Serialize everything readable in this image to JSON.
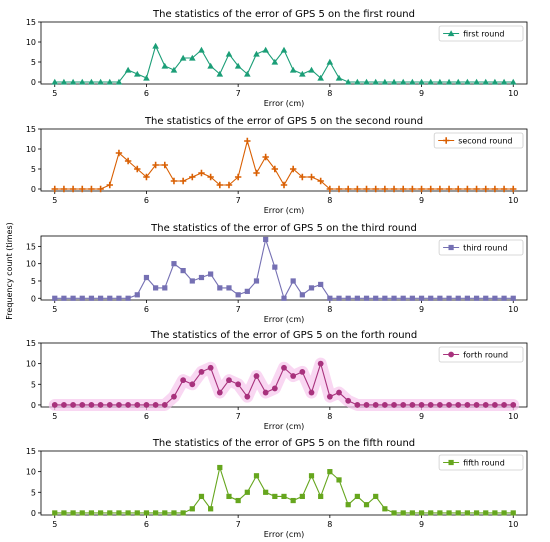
{
  "figure": {
    "ylabel": "Frequency count (times)"
  },
  "chart_data": [
    {
      "type": "line",
      "title": "The statistics of the error of GPS 5 on the first round",
      "xlabel": "Error (cm)",
      "ylabel": "",
      "xlim": [
        4.85,
        10.15
      ],
      "ylim": [
        -0.5,
        15
      ],
      "xticks": [
        5,
        6,
        7,
        8,
        9,
        10
      ],
      "yticks": [
        0,
        5,
        10,
        15
      ],
      "legend": "upper-right",
      "series": [
        {
          "name": "first round",
          "color": "#1b9e77",
          "marker": "triangle",
          "x": [
            5.0,
            5.1,
            5.2,
            5.3,
            5.4,
            5.5,
            5.6,
            5.7,
            5.8,
            5.9,
            6.0,
            6.1,
            6.2,
            6.3,
            6.4,
            6.5,
            6.6,
            6.7,
            6.8,
            6.9,
            7.0,
            7.1,
            7.2,
            7.3,
            7.4,
            7.5,
            7.6,
            7.7,
            7.8,
            7.9,
            8.0,
            8.1,
            8.2,
            8.3,
            8.4,
            8.5,
            8.6,
            8.7,
            8.8,
            8.9,
            9.0,
            9.1,
            9.2,
            9.3,
            9.4,
            9.5,
            9.6,
            9.7,
            9.8,
            9.9,
            10.0
          ],
          "values": [
            0,
            0,
            0,
            0,
            0,
            0,
            0,
            0,
            3,
            2,
            1,
            9,
            4,
            3,
            6,
            6,
            8,
            4,
            2,
            7,
            4,
            2,
            7,
            8,
            5,
            8,
            3,
            2,
            3,
            1,
            5,
            1,
            0,
            0,
            0,
            0,
            0,
            0,
            0,
            0,
            0,
            0,
            0,
            0,
            0,
            0,
            0,
            0,
            0,
            0,
            0
          ]
        }
      ]
    },
    {
      "type": "line",
      "title": "The statistics of the error of GPS 5 on the second round",
      "xlabel": "Error (cm)",
      "ylabel": "",
      "xlim": [
        4.85,
        10.15
      ],
      "ylim": [
        -0.5,
        15
      ],
      "xticks": [
        5,
        6,
        7,
        8,
        9,
        10
      ],
      "yticks": [
        0,
        5,
        10,
        15
      ],
      "legend": "upper-right",
      "series": [
        {
          "name": "second round",
          "color": "#d95f02",
          "marker": "plus",
          "x": [
            5.0,
            5.1,
            5.2,
            5.3,
            5.4,
            5.5,
            5.6,
            5.7,
            5.8,
            5.9,
            6.0,
            6.1,
            6.2,
            6.3,
            6.4,
            6.5,
            6.6,
            6.7,
            6.8,
            6.9,
            7.0,
            7.1,
            7.2,
            7.3,
            7.4,
            7.5,
            7.6,
            7.7,
            7.8,
            7.9,
            8.0,
            8.1,
            8.2,
            8.3,
            8.4,
            8.5,
            8.6,
            8.7,
            8.8,
            8.9,
            9.0,
            9.1,
            9.2,
            9.3,
            9.4,
            9.5,
            9.6,
            9.7,
            9.8,
            9.9,
            10.0
          ],
          "values": [
            0,
            0,
            0,
            0,
            0,
            0,
            1,
            9,
            7,
            5,
            3,
            6,
            6,
            2,
            2,
            3,
            4,
            3,
            1,
            1,
            3,
            12,
            4,
            8,
            5,
            1,
            5,
            3,
            3,
            2,
            0,
            0,
            0,
            0,
            0,
            0,
            0,
            0,
            0,
            0,
            0,
            0,
            0,
            0,
            0,
            0,
            0,
            0,
            0,
            0,
            0
          ]
        }
      ]
    },
    {
      "type": "line",
      "title": "The statistics of the error of GPS 5 on the third round",
      "xlabel": "Error (cm)",
      "ylabel": "",
      "xlim": [
        4.85,
        10.15
      ],
      "ylim": [
        -0.5,
        18
      ],
      "xticks": [
        5,
        6,
        7,
        8,
        9,
        10
      ],
      "yticks": [
        0,
        5,
        10,
        15
      ],
      "legend": "upper-right",
      "series": [
        {
          "name": "third round",
          "color": "#7570b3",
          "marker": "square",
          "x": [
            5.0,
            5.1,
            5.2,
            5.3,
            5.4,
            5.5,
            5.6,
            5.7,
            5.8,
            5.9,
            6.0,
            6.1,
            6.2,
            6.3,
            6.4,
            6.5,
            6.6,
            6.7,
            6.8,
            6.9,
            7.0,
            7.1,
            7.2,
            7.3,
            7.4,
            7.5,
            7.6,
            7.7,
            7.8,
            7.9,
            8.0,
            8.1,
            8.2,
            8.3,
            8.4,
            8.5,
            8.6,
            8.7,
            8.8,
            8.9,
            9.0,
            9.1,
            9.2,
            9.3,
            9.4,
            9.5,
            9.6,
            9.7,
            9.8,
            9.9,
            10.0
          ],
          "values": [
            0,
            0,
            0,
            0,
            0,
            0,
            0,
            0,
            0,
            1,
            6,
            3,
            3,
            10,
            8,
            5,
            6,
            7,
            3,
            3,
            1,
            2,
            5,
            17,
            9,
            0,
            5,
            1,
            3,
            4,
            0,
            0,
            0,
            0,
            0,
            0,
            0,
            0,
            0,
            0,
            0,
            0,
            0,
            0,
            0,
            0,
            0,
            0,
            0,
            0,
            0
          ]
        }
      ]
    },
    {
      "type": "line",
      "title": "The statistics of the error of GPS 5 on the forth round",
      "xlabel": "Error (cm)",
      "ylabel": "",
      "xlim": [
        4.85,
        10.15
      ],
      "ylim": [
        -0.5,
        15
      ],
      "xticks": [
        5,
        6,
        7,
        8,
        9,
        10
      ],
      "yticks": [
        0,
        5,
        10,
        15
      ],
      "legend": "upper-right",
      "series": [
        {
          "name": "forth round",
          "color": "#a8327d",
          "glow": "#f7c6ec",
          "marker": "circle",
          "x": [
            5.0,
            5.1,
            5.2,
            5.3,
            5.4,
            5.5,
            5.6,
            5.7,
            5.8,
            5.9,
            6.0,
            6.1,
            6.2,
            6.3,
            6.4,
            6.5,
            6.6,
            6.7,
            6.8,
            6.9,
            7.0,
            7.1,
            7.2,
            7.3,
            7.4,
            7.5,
            7.6,
            7.7,
            7.8,
            7.9,
            8.0,
            8.1,
            8.2,
            8.3,
            8.4,
            8.5,
            8.6,
            8.7,
            8.8,
            8.9,
            9.0,
            9.1,
            9.2,
            9.3,
            9.4,
            9.5,
            9.6,
            9.7,
            9.8,
            9.9,
            10.0
          ],
          "values": [
            0,
            0,
            0,
            0,
            0,
            0,
            0,
            0,
            0,
            0,
            0,
            0,
            0,
            2,
            6,
            5,
            8,
            9,
            3,
            6,
            5,
            2,
            7,
            3,
            4,
            9,
            7,
            8,
            3,
            10,
            2,
            3,
            1,
            0,
            0,
            0,
            0,
            0,
            0,
            0,
            0,
            0,
            0,
            0,
            0,
            0,
            0,
            0,
            0,
            0,
            0
          ]
        }
      ]
    },
    {
      "type": "line",
      "title": "The statistics of the error of GPS 5 on the fifth round",
      "xlabel": "Error (cm)",
      "ylabel": "",
      "xlim": [
        4.85,
        10.15
      ],
      "ylim": [
        -0.5,
        15
      ],
      "xticks": [
        5,
        6,
        7,
        8,
        9,
        10
      ],
      "yticks": [
        0,
        5,
        10,
        15
      ],
      "legend": "upper-right",
      "series": [
        {
          "name": "fifth round",
          "color": "#66a61e",
          "marker": "square",
          "x": [
            5.0,
            5.1,
            5.2,
            5.3,
            5.4,
            5.5,
            5.6,
            5.7,
            5.8,
            5.9,
            6.0,
            6.1,
            6.2,
            6.3,
            6.4,
            6.5,
            6.6,
            6.7,
            6.8,
            6.9,
            7.0,
            7.1,
            7.2,
            7.3,
            7.4,
            7.5,
            7.6,
            7.7,
            7.8,
            7.9,
            8.0,
            8.1,
            8.2,
            8.3,
            8.4,
            8.5,
            8.6,
            8.7,
            8.8,
            8.9,
            9.0,
            9.1,
            9.2,
            9.3,
            9.4,
            9.5,
            9.6,
            9.7,
            9.8,
            9.9,
            10.0
          ],
          "values": [
            0,
            0,
            0,
            0,
            0,
            0,
            0,
            0,
            0,
            0,
            0,
            0,
            0,
            0,
            0,
            1,
            4,
            1,
            11,
            4,
            3,
            5,
            9,
            5,
            4,
            4,
            3,
            4,
            9,
            4,
            10,
            8,
            2,
            4,
            2,
            4,
            1,
            0,
            0,
            0,
            0,
            0,
            0,
            0,
            0,
            0,
            0,
            0,
            0,
            0,
            0
          ]
        }
      ]
    }
  ]
}
